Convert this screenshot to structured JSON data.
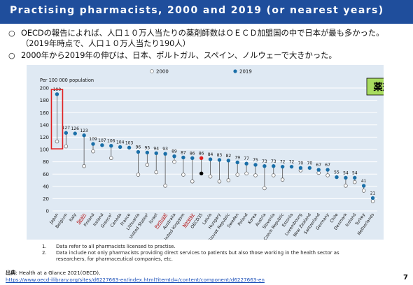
{
  "title": "Practising pharmacists, 2000 and 2019 (or nearest years)",
  "bullets": [
    {
      "mark": "○",
      "text": "OECDの報告によれば、人口１０万人当たりの薬剤師数はＯＥＣＤ加盟国の中で日本が最も多かった。（2019年時点で、人口１０万人当たり190人）"
    },
    {
      "mark": "○",
      "text": "2000年から2019年の伸びは、日本、ポルトガル、スペイン、ノルウェーで大きかった。"
    }
  ],
  "colors": {
    "title_bar": "#1f4e9c",
    "panel": "#dfe9f3",
    "series_2019": "#1a6fa8",
    "series_2000": "#ffffff",
    "japan_box": "#e02020",
    "badge_fill": "#a8dc5f",
    "oecd_highlight": "#e02020",
    "oecd_2000": "#000000"
  },
  "chart_data": {
    "type": "scatter",
    "ylabel": "Per 100 000 population",
    "ylim": [
      0,
      200
    ],
    "yticks": [
      0,
      20,
      40,
      60,
      80,
      100,
      120,
      140,
      160,
      180,
      200
    ],
    "grid": true,
    "legend": {
      "position": "top",
      "entries": [
        "2000",
        "2019"
      ]
    },
    "badge": "薬剤師",
    "highlighted_box": "Japan",
    "underlined": [
      "Spain",
      "Portugal",
      "Norway"
    ],
    "highlighted_point": "OECD35",
    "categories": [
      "Japan",
      "Belgium",
      "Italy",
      "Spain",
      "Finland",
      "Ireland",
      "Greece",
      "Canada",
      "France",
      "Lithuania",
      "United States",
      "Israel",
      "Portugal",
      "Australia",
      "United Kingdom",
      "Norway",
      "OECD35",
      "Latvia",
      "Hungary",
      "Slovak Republic",
      "Sweden",
      "Poland",
      "Korea",
      "Austria",
      "Slovenia",
      "Czech Republic",
      "Estonia",
      "Luxembourg",
      "New Zealand",
      "Switzerland",
      "Germany",
      "Chile",
      "Denmark",
      "Iceland",
      "Turkey",
      "Netherlands"
    ],
    "category_labels": [
      "Japan",
      "Belgium",
      "Italy",
      "Spain",
      "Finland",
      "Ireland",
      "Greece¹",
      "Canada",
      "France",
      "Lithuania",
      "United States²",
      "Israel",
      "Portugal",
      "Australia",
      "United Kingdom",
      "Norway",
      "OECD35",
      "Latvia",
      "Hungary",
      "Slovak Republic",
      "Sweden",
      "Poland",
      "Korea",
      "Austria",
      "Slovenia",
      "Czech Republic",
      "Estonia",
      "Luxembourg",
      "New Zealand",
      "Switzerland",
      "Germany",
      "Chile",
      "Denmark",
      "Iceland",
      "Turkey",
      "Netherlands"
    ],
    "series": [
      {
        "name": "2019",
        "values": [
          190,
          127,
          126,
          123,
          109,
          107,
          106,
          104,
          103,
          96,
          95,
          94,
          93,
          89,
          87,
          86,
          86,
          84,
          83,
          82,
          79,
          77,
          75,
          73,
          73,
          72,
          72,
          70,
          70,
          67,
          67,
          55,
          54,
          54,
          41,
          21
        ],
        "labels": [
          "190",
          "127",
          "126",
          "123",
          "109",
          "107",
          "106",
          "104",
          "103",
          "96",
          "95",
          "94",
          "93",
          "89",
          "87",
          "86",
          "86",
          "84",
          "83",
          "82",
          "79",
          "77",
          "75",
          "73",
          "73",
          "72",
          "72",
          "70",
          "70",
          "67",
          "67",
          "55",
          "54",
          "54",
          "41",
          "21"
        ]
      },
      {
        "name": "2000",
        "values": [
          113,
          105,
          null,
          73,
          97,
          null,
          86,
          null,
          null,
          59,
          75,
          63,
          41,
          80,
          59,
          48,
          61,
          56,
          48,
          50,
          59,
          61,
          58,
          37,
          58,
          51,
          null,
          66,
          null,
          62,
          58,
          null,
          41,
          47,
          33,
          16
        ]
      }
    ]
  },
  "notes": [
    {
      "num": "1.",
      "text": "Data refer to all pharmacists licensed to practise."
    },
    {
      "num": "2.",
      "text": "Data include not only pharmacists providing direct services to patients but also those working in the health sector as"
    },
    {
      "num": "",
      "text": "researchers, for pharmaceutical companies, etc."
    }
  ],
  "source": {
    "label": "出典",
    "text": ": Health at a Glance 2021(OECD),",
    "url": "https://www.oecd-ilibrary.org/sites/d6227663-en/index.html?itemId=/content/component/d6227663-en"
  },
  "page_number": "7"
}
